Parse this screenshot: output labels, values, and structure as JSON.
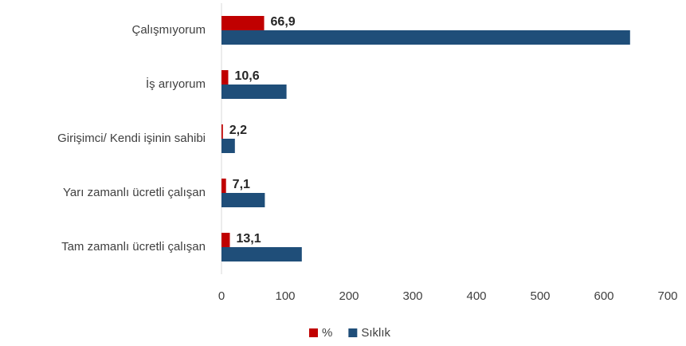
{
  "chart_data": {
    "type": "hbar",
    "categories": [
      "Çalışmıyorum",
      "İş arıyorum",
      "Girişimci/ Kendi işinin sahibi",
      "Yarı zamanlı ücretli çalışan",
      "Tam zamanlı ücretli çalışan"
    ],
    "series": [
      {
        "name": "%",
        "color": "#c00000",
        "values": [
          66.9,
          10.6,
          2.2,
          7.1,
          13.1
        ],
        "value_labels": [
          "66,9",
          "10,6",
          "2,2",
          "7,1",
          "13,1"
        ]
      },
      {
        "name": "Sıklık",
        "color": "#1f4e79",
        "values": [
          641,
          102,
          21,
          68,
          126
        ]
      }
    ],
    "xlim": [
      0,
      700
    ],
    "xticks": [
      0,
      100,
      200,
      300,
      400,
      500,
      600,
      700
    ],
    "grid": false,
    "legend": "bottom"
  }
}
